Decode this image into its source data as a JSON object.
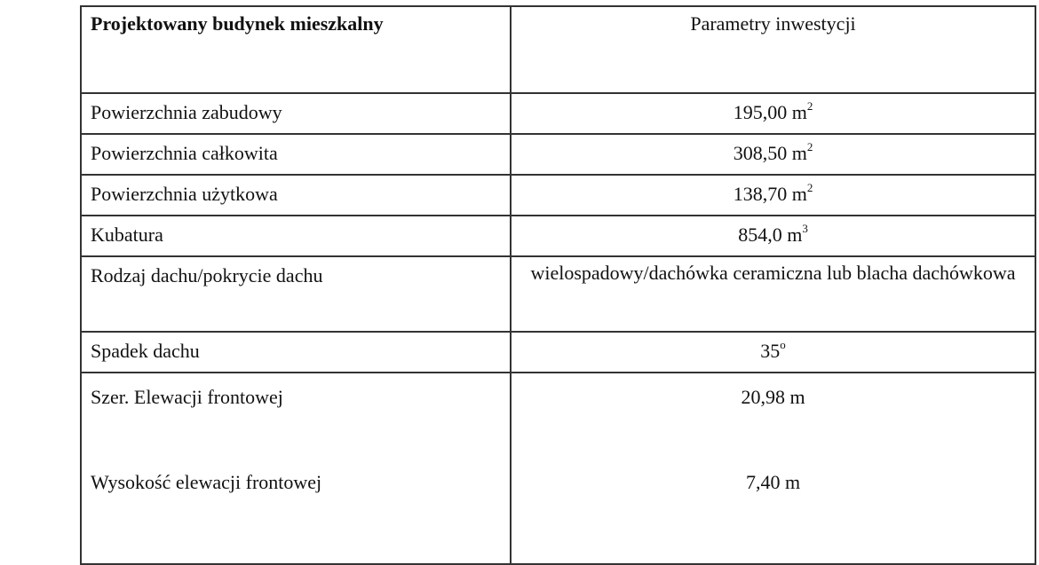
{
  "table": {
    "header": {
      "col1": "Projektowany budynek mieszkalny",
      "col2": "Parametry inwestycji"
    },
    "rows": [
      {
        "label": "Powierzchnia zabudowy",
        "value": "195,00 m",
        "sup": "2"
      },
      {
        "label": "Powierzchnia całkowita",
        "value": "308,50 m",
        "sup": "2"
      },
      {
        "label": "Powierzchnia użytkowa",
        "value": "138,70  m",
        "sup": "2"
      },
      {
        "label": "Kubatura",
        "value": "854,0  m",
        "sup": "3"
      },
      {
        "label": "Rodzaj dachu/pokrycie dachu",
        "value": "wielospadowy/dachówka ceramiczna lub blacha dachówkowa"
      },
      {
        "label": "Spadek dachu",
        "value": "35",
        "sup": "o"
      }
    ],
    "last": {
      "label1": "Szer. Elewacji frontowej",
      "value1": "20,98 m",
      "label2": "Wysokość elewacji frontowej",
      "value2": "7,40 m"
    }
  }
}
